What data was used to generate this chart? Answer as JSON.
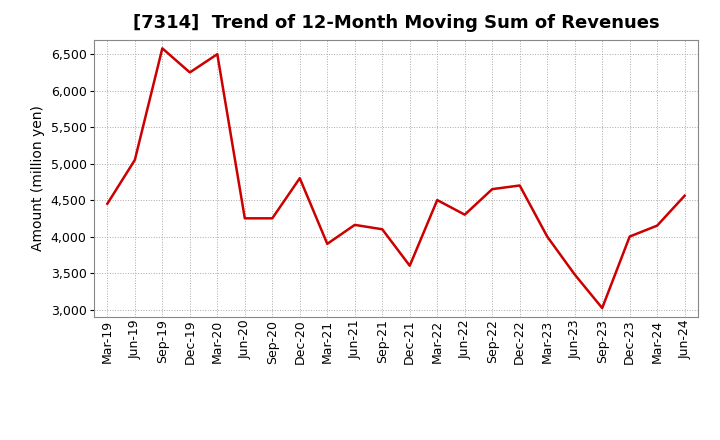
{
  "title": "[7314]  Trend of 12-Month Moving Sum of Revenues",
  "ylabel": "Amount (million yen)",
  "labels": [
    "Mar-19",
    "Jun-19",
    "Sep-19",
    "Dec-19",
    "Mar-20",
    "Jun-20",
    "Sep-20",
    "Dec-20",
    "Mar-21",
    "Jun-21",
    "Sep-21",
    "Dec-21",
    "Mar-22",
    "Jun-22",
    "Sep-22",
    "Dec-22",
    "Mar-23",
    "Jun-23",
    "Sep-23",
    "Dec-23",
    "Mar-24",
    "Jun-24"
  ],
  "values": [
    4450,
    5050,
    6580,
    6250,
    6500,
    4250,
    4250,
    4800,
    3900,
    4160,
    4100,
    3600,
    4500,
    4300,
    4650,
    4700,
    4000,
    3480,
    3020,
    4000,
    4150,
    4560
  ],
  "line_color": "#cc0000",
  "line_width": 1.8,
  "ylim": [
    2900,
    6700
  ],
  "yticks": [
    3000,
    3500,
    4000,
    4500,
    5000,
    5500,
    6000,
    6500
  ],
  "bg_color": "#ffffff",
  "plot_bg_color": "#ffffff",
  "grid_color": "#aaaaaa",
  "title_fontsize": 13,
  "axis_label_fontsize": 10,
  "tick_fontsize": 9
}
